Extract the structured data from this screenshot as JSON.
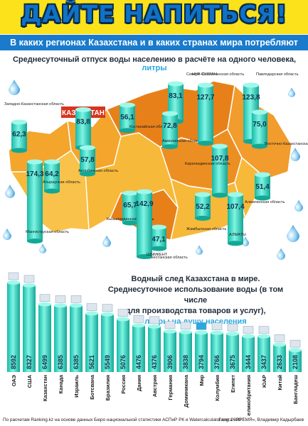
{
  "header": {
    "title": "ДАЙТЕ НАПИТЬСЯ!",
    "subtitle": "В каких регионах Казахстана и в каких странах мира потребляют больше воды?"
  },
  "map_section": {
    "title": "Среднесуточный отпуск воды населению в расчёте на одного человека,",
    "unit": "литры",
    "country_label": "КАЗАХСТАН"
  },
  "world_section": {
    "title_lines": [
      "Водный след Казахстана в мире.",
      "Среднесуточное использование воды (в том числе",
      "для производства товаров и услуг),"
    ],
    "unit": "литры на душу населения"
  },
  "footer": {
    "source": "По расчетам Ranking.kz на основе данных Бюро национальной статистики АСПиР РК и Watercalculator.org, 2020 г.",
    "credit": "Газета «ВРЕМЯ», Владимир Кадырбаев"
  },
  "colors": {
    "header_bg": "#fbe21b",
    "title_text": "#0f72c6",
    "subtitle_bg": "#1a7bcc",
    "cylinder": "#3fe0c8",
    "unit_text": "#2aa8e0",
    "map_dark": "#e8801a",
    "map_light": "#f7b93a"
  },
  "chart_data": [
    {
      "type": "bar",
      "categories": [
        "Северо-Казахстанская область",
        "Западно-Казахстанская область",
        "Костанайская область",
        "Акмолинская область",
        "НУР-СУЛТАН",
        "Павлодарская область",
        "Восточно-Казахстанская область",
        "Атырауская область",
        "Актюбинская область",
        "Карагандинская область",
        "Мангистауская область",
        "Кызылординская область",
        "Жамбылская область",
        "Туркестанская область",
        "ШЫМКЕНТ",
        "Алматинская область",
        "АЛМАТЫ"
      ],
      "values": [
        83.1,
        62.3,
        56.1,
        72.8,
        127.7,
        123.8,
        75.0,
        64.2,
        57.8,
        107.8,
        174.3,
        65.7,
        52.2,
        47.1,
        142.9,
        51.4,
        107.4
      ],
      "value_labels": [
        "83,1",
        "62,3",
        "56,1",
        "72,8",
        "127,7",
        "123,8",
        "75,0",
        "64,2",
        "57,8",
        "107,8",
        "174,3",
        "65,7",
        "52,2",
        "47,1",
        "142,9",
        "51,4",
        "107,4"
      ],
      "total_label": "КАЗАХСТАН",
      "total_value": 83.8,
      "total_value_label": "83,8"
    },
    {
      "type": "bar",
      "categories": [
        "ОАЭ",
        "США",
        "Казахстан",
        "Канада",
        "Израиль",
        "Ботсвана",
        "Бразилия",
        "Россия",
        "Дания",
        "Австрия",
        "Германия",
        "Доминикана",
        "Мир",
        "Колумбия",
        "Египет",
        "Великобритания",
        "ЮАР",
        "Китай",
        "Бангладеш"
      ],
      "values": [
        8592,
        8327,
        6499,
        6385,
        6385,
        5621,
        5549,
        5076,
        4476,
        4376,
        3906,
        3838,
        3794,
        3766,
        3675,
        3444,
        3437,
        2633,
        2108
      ]
    }
  ]
}
